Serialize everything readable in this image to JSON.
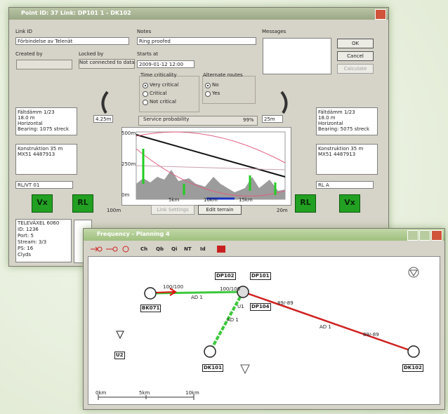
{
  "dialog": {
    "title": "Point ID: 37 Link: DP101 1 - DK102",
    "link_id_label": "Link ID",
    "link_id": "Förbindelse av Telenät",
    "notes_label": "Notes",
    "notes": "Ring proofed",
    "messages_label": "Messages",
    "buttons": [
      "OK",
      "Cancel",
      "Calculate"
    ],
    "created_by_label": "Created by",
    "locked_by_label": "Locked by",
    "locked_by": "Not connected to data",
    "starts_at_label": "Starts at",
    "starts_at": "2009-01-12 12:00",
    "time_criticality": {
      "label": "Time criticality",
      "options": [
        "Very critical",
        "Critical",
        "Not critical"
      ]
    },
    "alternate_routes": {
      "label": "Alternate routes",
      "options": [
        "No",
        "Yes"
      ]
    },
    "service_probability": {
      "label": "Service probability",
      "value": "99%"
    },
    "left_spacing": "4.25m",
    "right_spacing": "25m",
    "left_info": [
      "Fältdämm 1/23",
      "18.0 m",
      "Horizontal",
      "Bearing: 1075 streck"
    ],
    "left_construction": [
      "Konstruktion 35 m",
      "MX51 4487913"
    ],
    "right_info": [
      "Fältdämm 1/23",
      "18.0 m",
      "Horizontal",
      "Bearing: 5075 streck"
    ],
    "right_construction": [
      "Konstruktion 35 m",
      "MX51 4487913"
    ],
    "left_equipment": "RL/VT 01",
    "right_equipment": "RL A",
    "badges": [
      "Vx",
      "RL",
      "RL",
      "Vx"
    ],
    "profile": {
      "y_labels": [
        "500m",
        "250m",
        "0m"
      ],
      "x_labels": [
        "5km",
        "10km",
        "15km"
      ],
      "left_label": "100m",
      "right_label": "20m"
    },
    "profile_buttons": [
      "Link Settings",
      "Edit terrain"
    ],
    "port_info": [
      "TELEVÄXEL 6060",
      "ID: 1236",
      "Port: 5",
      "Stream: 3/3",
      "PS: 16",
      "Clyds"
    ]
  },
  "map": {
    "title": "Frequency - Planning 4",
    "toolbar": [
      "Ch",
      "Qb",
      "Qi",
      "NT",
      "Id"
    ],
    "nodes": [
      "BK071",
      "DP102",
      "DP101",
      "DP104",
      "DK101",
      "DK102",
      "U2",
      "U1"
    ],
    "link_labels": [
      "100/100",
      "AD 1",
      "100/100",
      "AD 1",
      "AD 1",
      "89/-89",
      "89/-89"
    ],
    "scale_labels": [
      "0km",
      "5km",
      "10km"
    ]
  }
}
